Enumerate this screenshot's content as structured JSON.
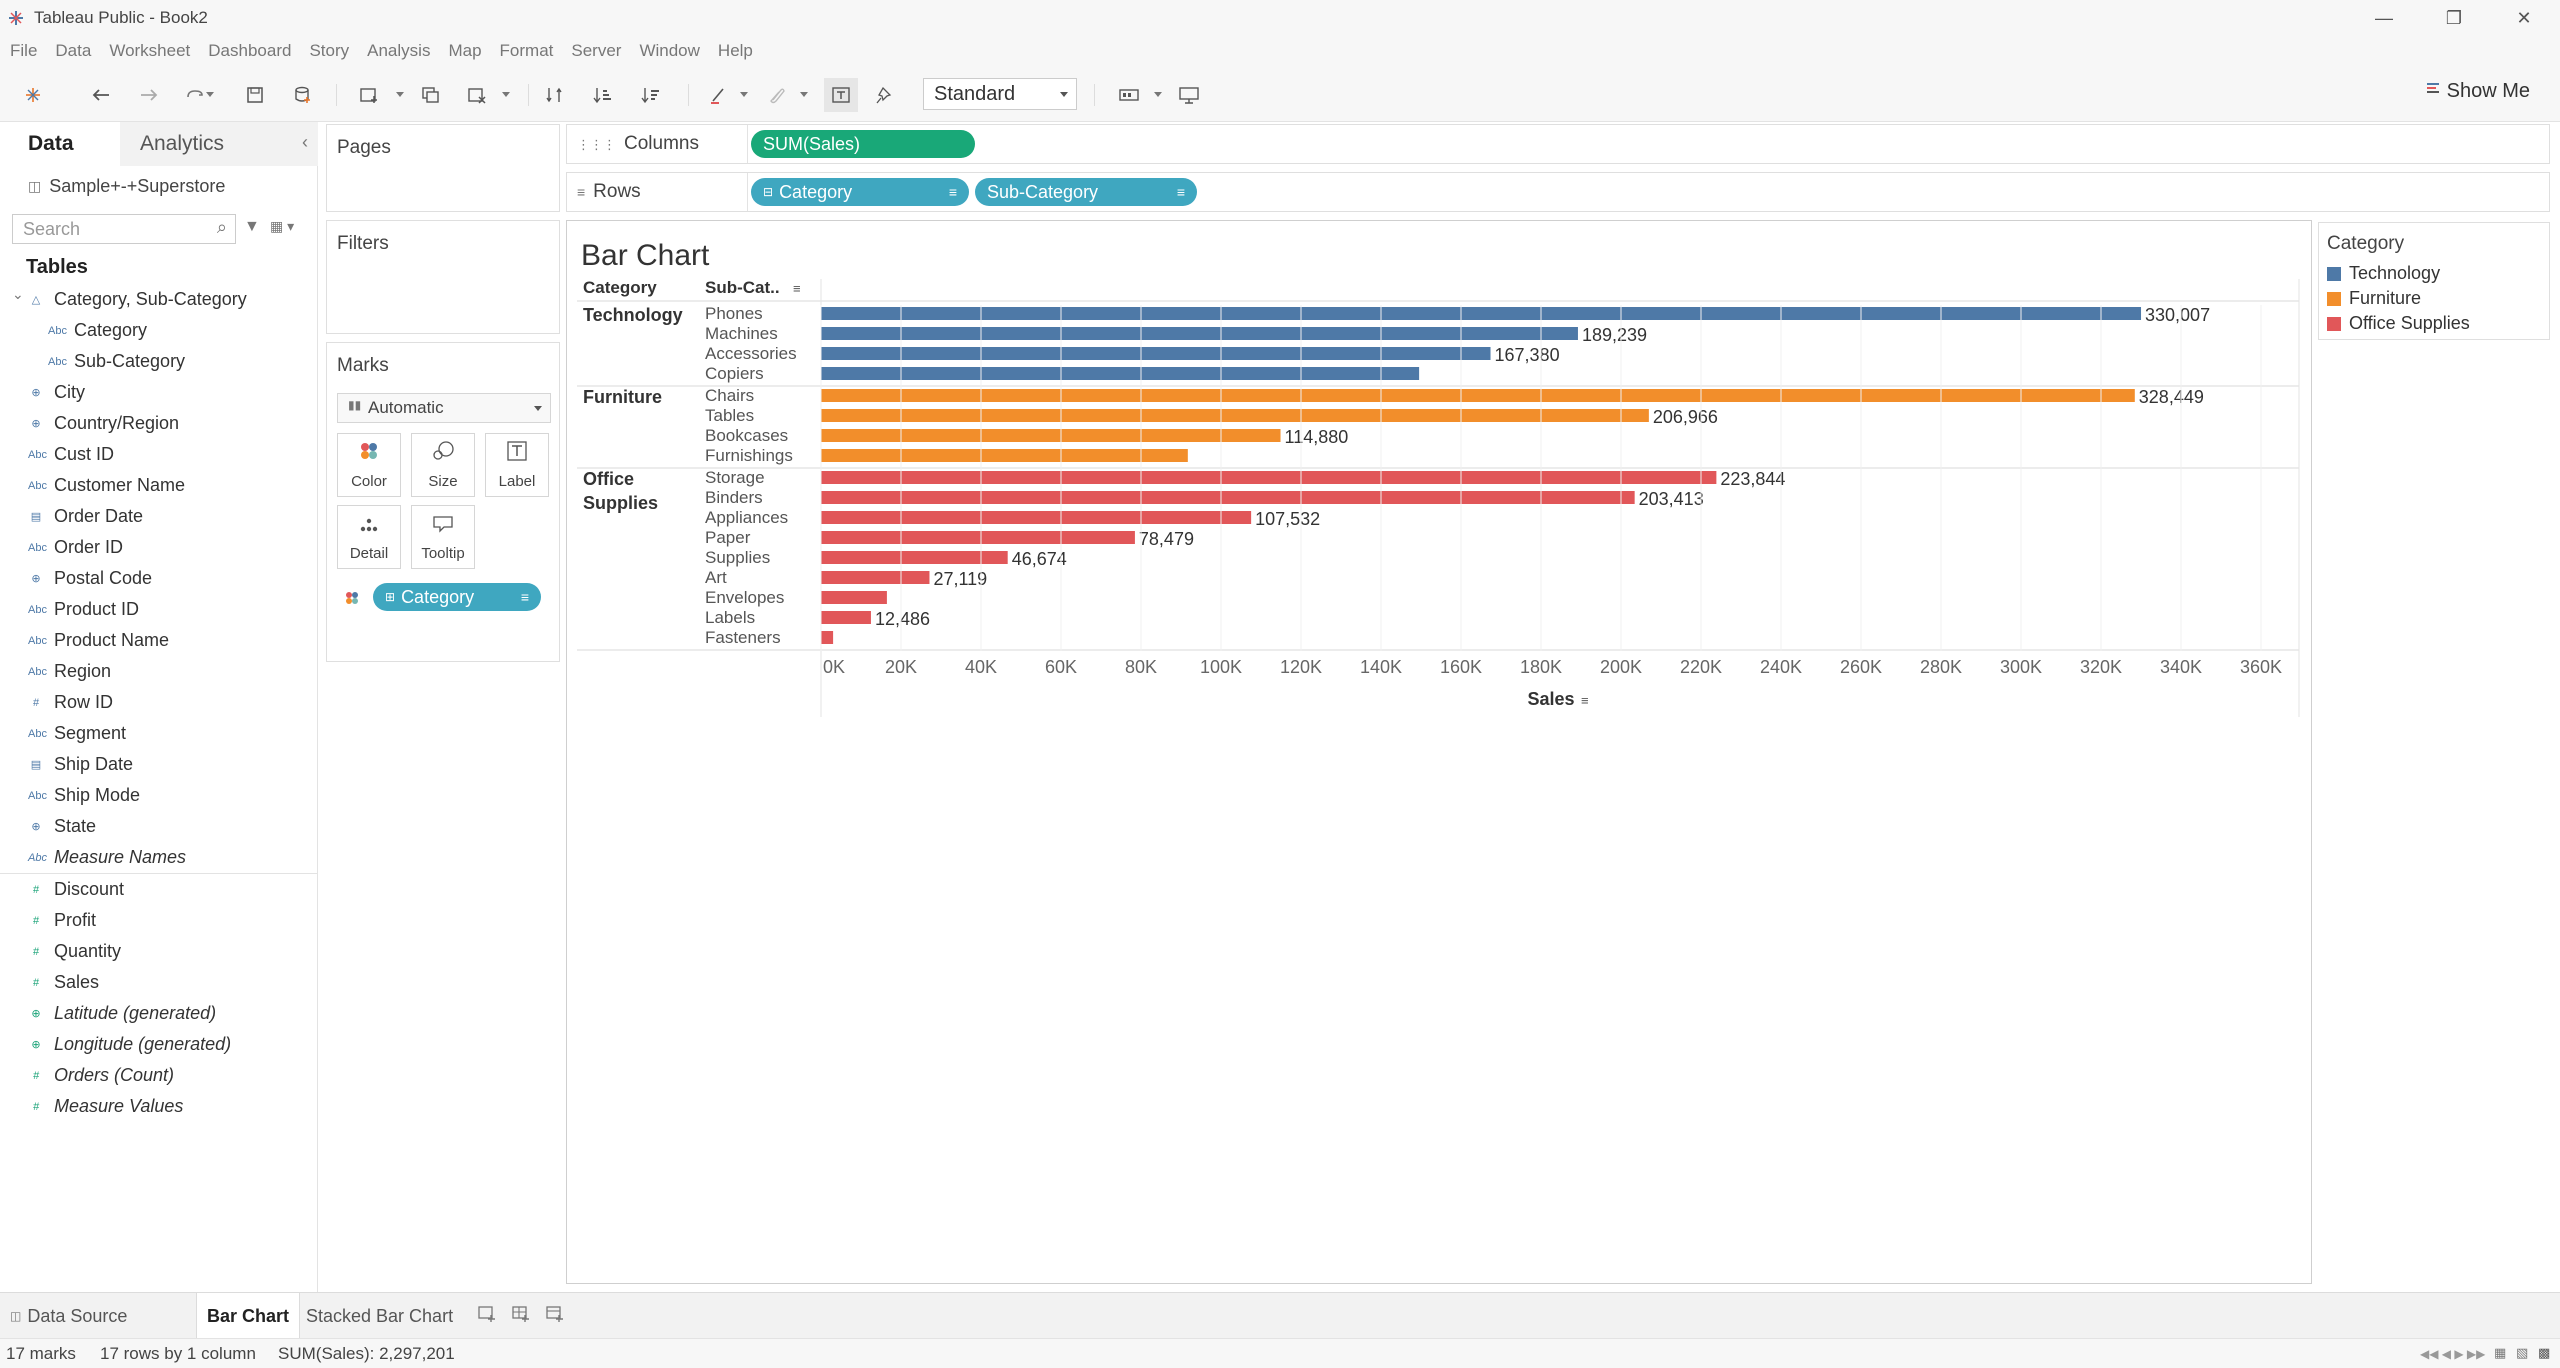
{
  "window": {
    "title": "Tableau Public - Book2"
  },
  "menu": [
    "File",
    "Data",
    "Worksheet",
    "Dashboard",
    "Story",
    "Analysis",
    "Map",
    "Format",
    "Server",
    "Window",
    "Help"
  ],
  "toolbar": {
    "fit_mode": "Standard",
    "show_me": "Show Me"
  },
  "left_pane": {
    "tab_data": "Data",
    "tab_analytics": "Analytics",
    "datasource": "Sample+-+Superstore",
    "search_placeholder": "Search",
    "tables_header": "Tables",
    "dimensions": [
      {
        "label": "Category, Sub-Category",
        "icon": "hierarchy-icon",
        "indent": false
      },
      {
        "label": "Category",
        "icon": "abc-icon",
        "indent": true
      },
      {
        "label": "Sub-Category",
        "icon": "abc-icon",
        "indent": true
      },
      {
        "label": "City",
        "icon": "globe-icon",
        "indent": false
      },
      {
        "label": "Country/Region",
        "icon": "globe-icon",
        "indent": false
      },
      {
        "label": "Cust ID",
        "icon": "abc-icon",
        "indent": false
      },
      {
        "label": "Customer Name",
        "icon": "abc-icon",
        "indent": false
      },
      {
        "label": "Order Date",
        "icon": "calendar-icon",
        "indent": false
      },
      {
        "label": "Order ID",
        "icon": "abc-icon",
        "indent": false
      },
      {
        "label": "Postal Code",
        "icon": "globe-icon",
        "indent": false
      },
      {
        "label": "Product ID",
        "icon": "abc-icon",
        "indent": false
      },
      {
        "label": "Product Name",
        "icon": "abc-icon",
        "indent": false
      },
      {
        "label": "Region",
        "icon": "abc-icon",
        "indent": false
      },
      {
        "label": "Row ID",
        "icon": "number-icon",
        "indent": false
      },
      {
        "label": "Segment",
        "icon": "abc-icon",
        "indent": false
      },
      {
        "label": "Ship Date",
        "icon": "calendar-icon",
        "indent": false
      },
      {
        "label": "Ship Mode",
        "icon": "abc-icon",
        "indent": false
      },
      {
        "label": "State",
        "icon": "globe-icon",
        "indent": false
      },
      {
        "label": "Measure Names",
        "icon": "abc-icon",
        "indent": false,
        "italic": true
      }
    ],
    "measures": [
      {
        "label": "Discount",
        "icon": "number-icon"
      },
      {
        "label": "Profit",
        "icon": "number-icon"
      },
      {
        "label": "Quantity",
        "icon": "number-icon"
      },
      {
        "label": "Sales",
        "icon": "number-icon"
      },
      {
        "label": "Latitude (generated)",
        "icon": "globe-icon",
        "italic": true
      },
      {
        "label": "Longitude (generated)",
        "icon": "globe-icon",
        "italic": true
      },
      {
        "label": "Orders (Count)",
        "icon": "number-icon",
        "italic": true
      },
      {
        "label": "Measure Values",
        "icon": "number-icon",
        "italic": true
      }
    ]
  },
  "cards": {
    "pages": "Pages",
    "filters": "Filters",
    "marks": "Marks",
    "mark_type": "Automatic",
    "mark_buttons": [
      "Color",
      "Size",
      "Label",
      "Detail",
      "Tooltip"
    ],
    "marks_pill": "Category"
  },
  "shelves": {
    "columns_label": "Columns",
    "rows_label": "Rows",
    "columns_pill": "SUM(Sales)",
    "rows_pills": [
      "Category",
      "Sub-Category"
    ]
  },
  "legend": {
    "title": "Category",
    "items": [
      {
        "label": "Technology",
        "color": "#4e79a7"
      },
      {
        "label": "Furniture",
        "color": "#f28e2b"
      },
      {
        "label": "Office Supplies",
        "color": "#e15759"
      }
    ]
  },
  "chart_data": {
    "type": "bar",
    "title": "Bar Chart",
    "row_header_1": "Category",
    "row_header_2": "Sub-Cat..",
    "xlabel": "Sales",
    "xlim": [
      0,
      365000
    ],
    "x_ticks": [
      "0K",
      "20K",
      "40K",
      "60K",
      "80K",
      "100K",
      "120K",
      "140K",
      "160K",
      "180K",
      "200K",
      "220K",
      "240K",
      "260K",
      "280K",
      "300K",
      "320K",
      "340K",
      "360K"
    ],
    "groups": [
      {
        "category": "Technology",
        "color": "#4e79a7",
        "rows": [
          {
            "sub": "Phones",
            "value": 330007,
            "label": "330,007"
          },
          {
            "sub": "Machines",
            "value": 189239,
            "label": "189,239"
          },
          {
            "sub": "Accessories",
            "value": 167380,
            "label": "167,380"
          },
          {
            "sub": "Copiers",
            "value": 149528,
            "label": ""
          }
        ]
      },
      {
        "category": "Furniture",
        "color": "#f28e2b",
        "rows": [
          {
            "sub": "Chairs",
            "value": 328449,
            "label": "328,449"
          },
          {
            "sub": "Tables",
            "value": 206966,
            "label": "206,966"
          },
          {
            "sub": "Bookcases",
            "value": 114880,
            "label": "114,880"
          },
          {
            "sub": "Furnishings",
            "value": 91705,
            "label": ""
          }
        ]
      },
      {
        "category": "Office Supplies",
        "color": "#e15759",
        "rows": [
          {
            "sub": "Storage",
            "value": 223844,
            "label": "223,844"
          },
          {
            "sub": "Binders",
            "value": 203413,
            "label": "203,413"
          },
          {
            "sub": "Appliances",
            "value": 107532,
            "label": "107,532"
          },
          {
            "sub": "Paper",
            "value": 78479,
            "label": "78,479"
          },
          {
            "sub": "Supplies",
            "value": 46674,
            "label": "46,674"
          },
          {
            "sub": "Art",
            "value": 27119,
            "label": "27,119"
          },
          {
            "sub": "Envelopes",
            "value": 16476,
            "label": ""
          },
          {
            "sub": "Labels",
            "value": 12486,
            "label": "12,486"
          },
          {
            "sub": "Fasteners",
            "value": 3024,
            "label": ""
          }
        ]
      }
    ]
  },
  "sheet_tabs": {
    "data_source": "Data Source",
    "tabs": [
      "Bar Chart",
      "Stacked Bar Chart"
    ]
  },
  "status": {
    "marks": "17 marks",
    "dims": "17 rows by 1 column",
    "sum": "SUM(Sales): 2,297,201"
  }
}
